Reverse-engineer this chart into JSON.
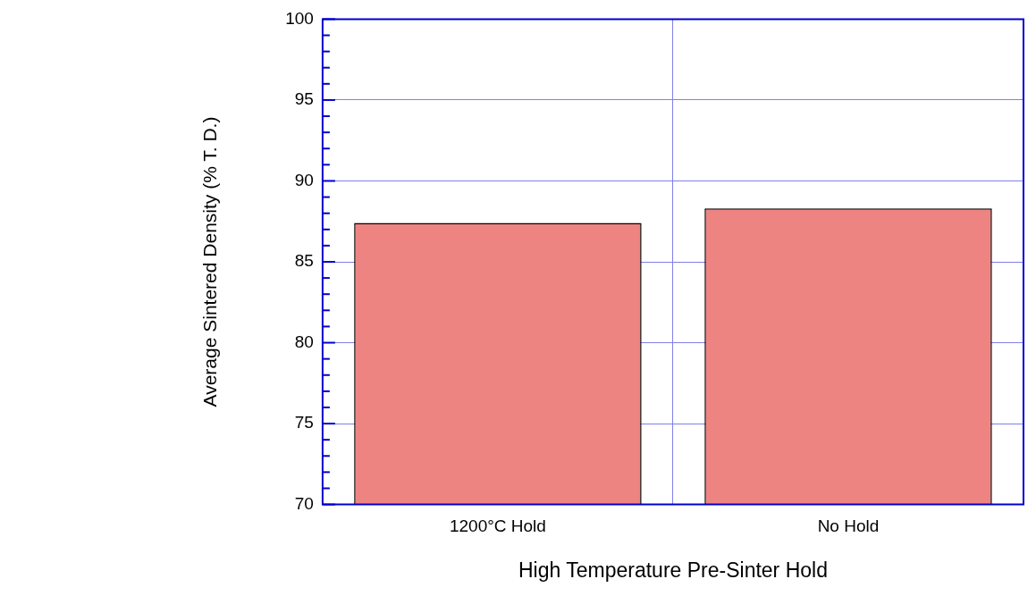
{
  "chart_data": {
    "type": "bar",
    "xlabel": "High Temperature Pre-Sinter Hold",
    "ylabel": "Average Sintered Density (% T. D.)",
    "categories": [
      "1200°C Hold",
      "No Hold"
    ],
    "values": [
      87.4,
      88.3
    ],
    "color": "#ee8482",
    "ylim": [
      70,
      100
    ],
    "yticks": [
      70,
      {
        "value": 71,
        "label": null
      },
      {
        "value": 72,
        "label": null
      },
      {
        "value": 73,
        "label": null
      },
      {
        "value": 74,
        "label": null
      },
      75,
      {
        "value": 76,
        "label": null
      },
      {
        "value": 77,
        "label": null
      },
      {
        "value": 78,
        "label": null
      },
      {
        "value": 79,
        "label": null
      },
      80,
      {
        "value": 81,
        "label": null
      },
      {
        "value": 82,
        "label": null
      },
      {
        "value": 83,
        "label": null
      },
      {
        "value": 84,
        "label": null
      },
      85,
      {
        "value": 86,
        "label": null
      },
      {
        "value": 87,
        "label": null
      },
      {
        "value": 88,
        "label": null
      },
      {
        "value": 89,
        "label": null
      },
      90,
      {
        "value": 91,
        "label": null
      },
      {
        "value": 92,
        "label": null
      },
      {
        "value": 93,
        "label": null
      },
      {
        "value": 94,
        "label": null
      },
      95,
      {
        "value": 96,
        "label": null
      },
      {
        "value": 97,
        "label": null
      },
      {
        "value": 98,
        "label": null
      },
      {
        "value": 99,
        "label": null
      },
      100
    ],
    "grid": true,
    "legend": false
  }
}
